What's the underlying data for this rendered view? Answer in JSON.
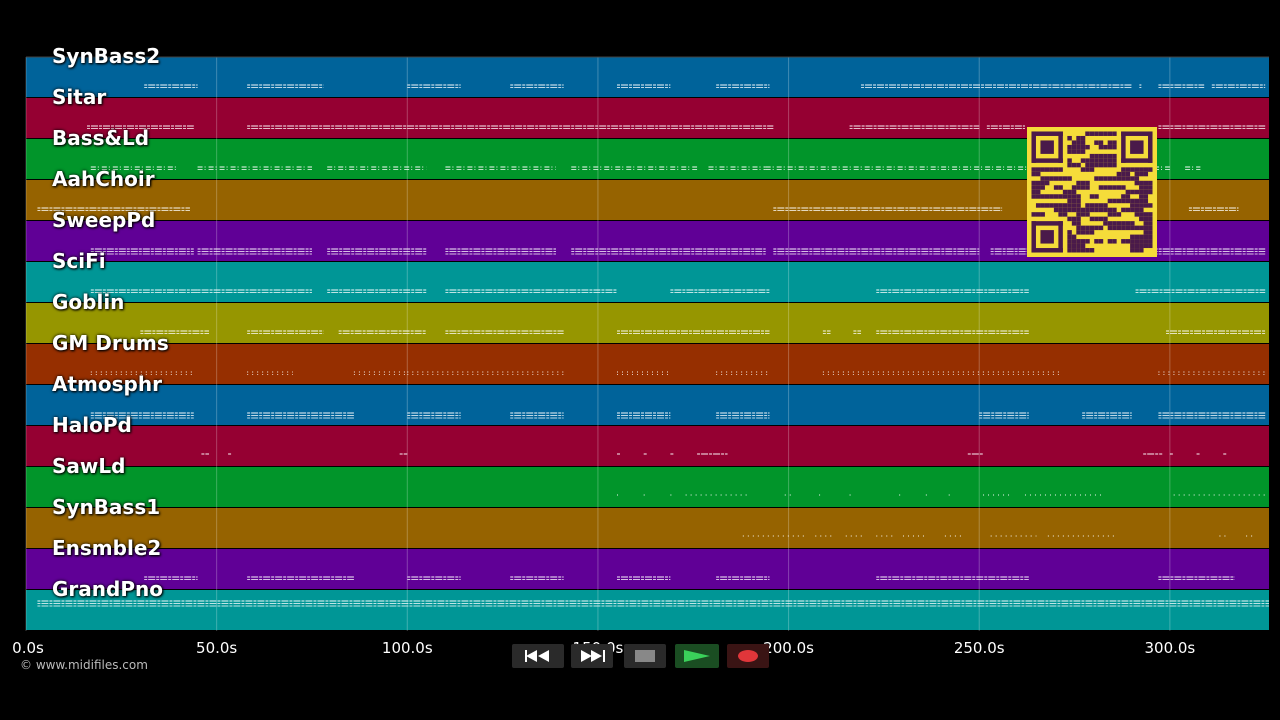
{
  "tracks": [
    {
      "name": "SynBass2",
      "color": "#00639a"
    },
    {
      "name": "Sitar",
      "color": "#950032"
    },
    {
      "name": "Bass&Ld",
      "color": "#01952a"
    },
    {
      "name": "AahChoir",
      "color": "#966300"
    },
    {
      "name": "SweepPd",
      "color": "#600096"
    },
    {
      "name": "SciFi",
      "color": "#009696"
    },
    {
      "name": "Goblin",
      "color": "#969600"
    },
    {
      "name": "GM Drums",
      "color": "#962f00"
    },
    {
      "name": "Atmosphr",
      "color": "#00639a"
    },
    {
      "name": "HaloPd",
      "color": "#950032"
    },
    {
      "name": "SawLd",
      "color": "#01952a"
    },
    {
      "name": "SynBass1",
      "color": "#966300"
    },
    {
      "name": "Ensmble2",
      "color": "#600096"
    },
    {
      "name": "GrandPno",
      "color": "#009696"
    }
  ],
  "time_axis": {
    "ticks": [
      "0.0s",
      "50.0s",
      "100.0s",
      "150.0s",
      "200.0s",
      "250.0s",
      "300.0s"
    ],
    "tick_values": [
      0,
      50,
      100,
      150,
      200,
      250,
      300
    ],
    "max_seconds": 326
  },
  "note_segments": [
    [
      [
        31,
        45
      ],
      [
        58,
        78
      ],
      [
        100,
        114
      ],
      [
        127,
        141
      ],
      [
        155,
        169
      ],
      [
        181,
        195
      ],
      [
        219,
        265
      ],
      [
        265,
        290
      ],
      [
        292,
        292
      ],
      [
        297,
        309
      ],
      [
        311,
        325
      ]
    ],
    [
      [
        16,
        44
      ],
      [
        58,
        196
      ],
      [
        216,
        250
      ],
      [
        252,
        262
      ],
      [
        297,
        325
      ]
    ],
    [
      [
        17,
        40
      ],
      [
        45,
        75
      ],
      [
        79,
        105
      ],
      [
        110,
        139
      ],
      [
        143,
        176
      ],
      [
        179,
        194
      ],
      [
        194,
        240
      ],
      [
        240,
        263
      ],
      [
        267,
        300
      ],
      [
        304,
        308
      ]
    ],
    [
      [
        3,
        43
      ],
      [
        196,
        256
      ],
      [
        305,
        318
      ]
    ],
    [
      [
        17,
        44
      ],
      [
        45,
        75
      ],
      [
        79,
        105
      ],
      [
        110,
        139
      ],
      [
        143,
        194
      ],
      [
        196,
        250
      ],
      [
        253,
        325
      ]
    ],
    [
      [
        17,
        45
      ],
      [
        45,
        75
      ],
      [
        79,
        105
      ],
      [
        110,
        155
      ],
      [
        169,
        195
      ],
      [
        223,
        263
      ],
      [
        291,
        325
      ]
    ],
    [
      [
        30,
        48
      ],
      [
        58,
        78
      ],
      [
        82,
        105
      ],
      [
        110,
        141
      ],
      [
        155,
        195
      ],
      [
        209,
        211
      ],
      [
        217,
        219
      ],
      [
        223,
        263
      ],
      [
        299,
        325
      ]
    ],
    [
      [
        17,
        44
      ],
      [
        58,
        70
      ],
      [
        86,
        100
      ],
      [
        100,
        141
      ],
      [
        155,
        169
      ],
      [
        181,
        195
      ],
      [
        209,
        271
      ],
      [
        297,
        325
      ]
    ],
    [
      [
        17,
        44
      ],
      [
        58,
        86
      ],
      [
        100,
        114
      ],
      [
        127,
        141
      ],
      [
        155,
        169
      ],
      [
        181,
        195
      ],
      [
        250,
        263
      ],
      [
        277,
        290
      ],
      [
        297,
        325
      ]
    ],
    [
      [
        46,
        48
      ],
      [
        53,
        54
      ],
      [
        98,
        100
      ],
      [
        155,
        156
      ],
      [
        162,
        163
      ],
      [
        169,
        170
      ],
      [
        176,
        184
      ],
      [
        247,
        251
      ],
      [
        293,
        298
      ],
      [
        300,
        301
      ],
      [
        307,
        308
      ],
      [
        314,
        315
      ]
    ],
    [
      [
        155,
        156
      ],
      [
        162,
        163
      ],
      [
        169,
        170
      ],
      [
        173,
        189
      ],
      [
        199,
        201
      ],
      [
        208,
        209
      ],
      [
        216,
        217
      ],
      [
        229,
        230
      ],
      [
        236,
        237
      ],
      [
        242,
        243
      ],
      [
        251,
        258
      ],
      [
        262,
        282
      ],
      [
        301,
        325
      ]
    ],
    [
      [
        188,
        205
      ],
      [
        207,
        212
      ],
      [
        215,
        220
      ],
      [
        223,
        228
      ],
      [
        230,
        236
      ],
      [
        241,
        246
      ],
      [
        253,
        265
      ],
      [
        268,
        286
      ],
      [
        313,
        315
      ],
      [
        320,
        322
      ]
    ],
    [
      [
        31,
        45
      ],
      [
        58,
        86
      ],
      [
        100,
        114
      ],
      [
        127,
        141
      ],
      [
        155,
        169
      ],
      [
        181,
        195
      ],
      [
        223,
        263
      ],
      [
        297,
        317
      ]
    ],
    [
      [
        3,
        326
      ]
    ]
  ],
  "transport": {
    "rewind_icon": "rewind-icon",
    "fast_forward_icon": "fast-forward-icon",
    "stop_icon": "stop-icon",
    "play_icon": "play-icon",
    "record_icon": "record-icon"
  },
  "copyright": "© www.midifiles.com",
  "qr_icon": "qr-code-icon"
}
